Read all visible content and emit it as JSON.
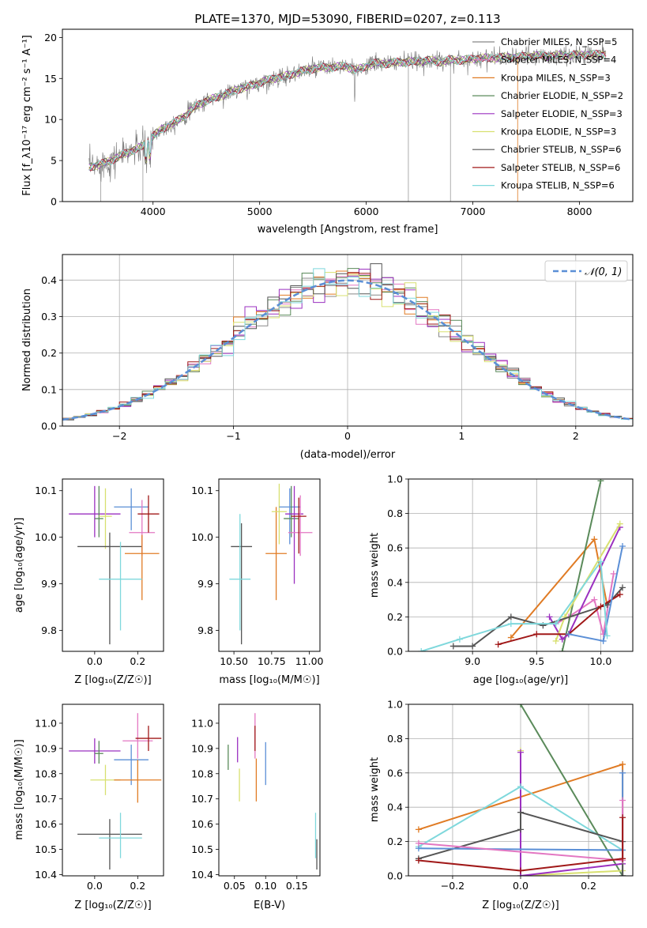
{
  "colors": {
    "chabrier_miles": "#888888",
    "salpeter_miles": "#e377c2",
    "kroupa_miles": "#e07b24",
    "chabrier_elodie": "#5a8a5a",
    "salpeter_elodie": "#9b30c0",
    "kroupa_elodie": "#d8e070",
    "chabrier_stelib": "#555555",
    "salpeter_stelib": "#a01818",
    "kroupa_stelib": "#7fd8dc",
    "normal_curve": "#5b8fd6"
  },
  "chart_data": [
    {
      "id": "spectrum",
      "type": "line",
      "title": "PLATE=1370, MJD=53090, FIBERID=0207, z=0.113",
      "xlabel": "wavelength [Angstrom, rest frame]",
      "ylabel": "Flux [f_λ10⁻¹⁷ erg cm⁻² s⁻¹ A⁻¹]",
      "xlim": [
        3150,
        8500
      ],
      "ylim": [
        0,
        21
      ],
      "xticks": [
        4000,
        5000,
        6000,
        7000,
        8000
      ],
      "yticks": [
        0,
        5,
        10,
        15,
        20
      ],
      "grid": false,
      "legend_position": "right",
      "continuum": {
        "x": [
          3400,
          3500,
          3600,
          3700,
          3800,
          3900,
          4000,
          4100,
          4200,
          4300,
          4400,
          4500,
          4600,
          4700,
          4800,
          4900,
          5000,
          5100,
          5200,
          5300,
          5400,
          5500,
          5600,
          5700,
          5800,
          5900,
          6000,
          6100,
          6200,
          6300,
          6400,
          6500,
          6600,
          6700,
          6800,
          6900,
          7000,
          7100,
          7200,
          7300,
          7400,
          7500,
          7600,
          7700,
          7800,
          7900,
          8000,
          8100,
          8250
        ],
        "y": [
          4.2,
          4.5,
          5.0,
          5.6,
          6.2,
          6.7,
          8.0,
          9.0,
          9.6,
          10.5,
          11.6,
          12.3,
          12.7,
          13.2,
          13.7,
          14.0,
          14.5,
          14.9,
          15.2,
          15.5,
          15.9,
          16.2,
          16.3,
          16.4,
          16.5,
          16.0,
          16.5,
          16.9,
          16.8,
          17.0,
          17.0,
          17.1,
          17.2,
          17.0,
          17.3,
          17.2,
          17.4,
          17.5,
          17.5,
          17.6,
          17.6,
          17.7,
          17.8,
          17.7,
          17.8,
          17.8,
          17.9,
          17.9,
          18.0
        ]
      },
      "series": [
        {
          "name": "Chabrier MILES, N_SSP=5",
          "color": "#888888"
        },
        {
          "name": "Salpeter MILES, N_SSP=4",
          "color": "#e377c2"
        },
        {
          "name": "Kroupa MILES, N_SSP=3",
          "color": "#e07b24"
        },
        {
          "name": "Chabrier ELODIE, N_SSP=2",
          "color": "#5a8a5a"
        },
        {
          "name": "Salpeter ELODIE, N_SSP=3",
          "color": "#9b30c0"
        },
        {
          "name": "Kroupa ELODIE, N_SSP=3",
          "color": "#d8e070"
        },
        {
          "name": "Chabrier STELIB, N_SSP=6",
          "color": "#555555"
        },
        {
          "name": "Salpeter STELIB, N_SSP=6",
          "color": "#a01818"
        },
        {
          "name": "Kroupa STELIB, N_SSP=6",
          "color": "#7fd8dc"
        }
      ]
    },
    {
      "id": "residuals",
      "type": "line",
      "xlabel": "(data-model)/error",
      "ylabel": "Normed distribution",
      "xlim": [
        -2.5,
        2.5
      ],
      "ylim": [
        0,
        0.47
      ],
      "xticks": [
        -2,
        -1,
        0,
        1,
        2
      ],
      "yticks": [
        0.0,
        0.1,
        0.2,
        0.3,
        0.4
      ],
      "grid": true,
      "legend_position": "top-right",
      "legend": "𝒩(0, 1)",
      "bin_width": 0.1,
      "description_of_hist": "9 step histograms of residuals scattering around the standard normal density",
      "normal_mean": 0,
      "normal_sigma": 1
    },
    {
      "id": "age_vs_Z",
      "type": "scatter",
      "xlabel": "Z [log₁₀(Z/Z☉)]",
      "ylabel": "age  [log₁₀(age/yr)]",
      "xlim": [
        -0.15,
        0.32
      ],
      "ylim": [
        9.755,
        10.125
      ],
      "xticks": [
        0.0,
        0.2
      ],
      "yticks": [
        9.8,
        9.9,
        10.0,
        10.1
      ],
      "grid": false,
      "points": [
        {
          "x": 0.0,
          "xerr": 0.12,
          "y": 10.05,
          "yerr": [
            0.05,
            0.06
          ],
          "color": "#9b30c0"
        },
        {
          "x": 0.02,
          "xerr": 0.02,
          "y": 10.04,
          "yerr": [
            0.04,
            0.07
          ],
          "color": "#5a8a5a"
        },
        {
          "x": 0.05,
          "xerr": 0.03,
          "y": 10.045,
          "yerr": [
            0.07,
            0.06
          ],
          "color": "#d8e070"
        },
        {
          "x": 0.07,
          "xerr": 0.15,
          "y": 9.98,
          "yerr": [
            0.21,
            0.03
          ],
          "color": "#555555"
        },
        {
          "x": 0.17,
          "xerr": 0.08,
          "y": 10.065,
          "yerr": [
            0.05,
            0.04
          ],
          "color": "#5b8fd6"
        },
        {
          "x": 0.22,
          "xerr": 0.06,
          "y": 10.01,
          "yerr": [
            0.05,
            0.07
          ],
          "color": "#e377c2"
        },
        {
          "x": 0.25,
          "xerr": 0.05,
          "y": 10.05,
          "yerr": [
            0.04,
            0.04
          ],
          "color": "#a01818"
        },
        {
          "x": 0.22,
          "xerr": 0.08,
          "y": 9.965,
          "yerr": [
            0.1,
            0.04
          ],
          "color": "#e07b24"
        },
        {
          "x": 0.12,
          "xerr": 0.1,
          "y": 9.91,
          "yerr": [
            0.11,
            0.08
          ],
          "color": "#7fd8dc"
        }
      ]
    },
    {
      "id": "age_vs_mass",
      "type": "scatter",
      "xlabel": "mass [log₁₀(M/M☉)]",
      "ylabel": "",
      "xlim": [
        10.4,
        11.07
      ],
      "ylim": [
        9.755,
        10.125
      ],
      "xticks": [
        10.5,
        10.75,
        11.0
      ],
      "yticks": [
        9.8,
        9.9,
        10.0,
        10.1
      ],
      "grid": false,
      "points": [
        {
          "x": 10.55,
          "xerr": 0.07,
          "y": 9.98,
          "yerr": [
            0.21,
            0.05
          ],
          "color": "#555555"
        },
        {
          "x": 10.54,
          "xerr": 0.07,
          "y": 9.91,
          "yerr": [
            0.11,
            0.14
          ],
          "color": "#7fd8dc"
        },
        {
          "x": 10.78,
          "xerr": 0.07,
          "y": 9.965,
          "yerr": [
            0.1,
            0.1
          ],
          "color": "#e07b24"
        },
        {
          "x": 10.8,
          "xerr": 0.05,
          "y": 10.055,
          "yerr": [
            0.07,
            0.06
          ],
          "color": "#d8e070"
        },
        {
          "x": 10.87,
          "xerr": 0.07,
          "y": 10.065,
          "yerr": [
            0.08,
            0.04
          ],
          "color": "#5b8fd6"
        },
        {
          "x": 10.88,
          "xerr": 0.05,
          "y": 10.04,
          "yerr": [
            0.04,
            0.07
          ],
          "color": "#5a8a5a"
        },
        {
          "x": 10.9,
          "xerr": 0.06,
          "y": 10.05,
          "yerr": [
            0.15,
            0.06
          ],
          "color": "#9b30c0"
        },
        {
          "x": 10.94,
          "xerr": 0.08,
          "y": 10.01,
          "yerr": [
            0.05,
            0.08
          ],
          "color": "#e377c2"
        },
        {
          "x": 10.93,
          "xerr": 0.05,
          "y": 10.045,
          "yerr": [
            0.08,
            0.04
          ],
          "color": "#a01818"
        }
      ]
    },
    {
      "id": "weight_vs_age",
      "type": "line",
      "xlabel": "age  [log₁₀(age/yr)]",
      "ylabel": "mass weight",
      "xlim": [
        8.5,
        10.25
      ],
      "ylim": [
        0,
        1.0
      ],
      "xticks": [
        9.0,
        9.5,
        10.0
      ],
      "yticks": [
        0.0,
        0.2,
        0.4,
        0.6,
        0.8,
        1.0
      ],
      "grid": true,
      "series": [
        {
          "color": "#e377c2",
          "x": [
            9.65,
            9.75,
            9.95,
            10.02,
            10.1
          ],
          "y": [
            0.16,
            0.2,
            0.3,
            0.1,
            0.45
          ]
        },
        {
          "color": "#e07b24",
          "x": [
            9.3,
            9.95,
            10.05
          ],
          "y": [
            0.08,
            0.65,
            0.27
          ]
        },
        {
          "color": "#5a8a5a",
          "x": [
            9.7,
            10.0
          ],
          "y": [
            0.0,
            0.99
          ]
        },
        {
          "color": "#9b30c0",
          "x": [
            9.6,
            9.7,
            9.75,
            10.15
          ],
          "y": [
            0.2,
            0.07,
            0.1,
            0.72
          ]
        },
        {
          "color": "#d8e070",
          "x": [
            9.65,
            9.72,
            10.15
          ],
          "y": [
            0.06,
            0.2,
            0.74
          ]
        },
        {
          "color": "#555555",
          "x": [
            8.85,
            9.0,
            9.3,
            9.55,
            10.05,
            10.17
          ],
          "y": [
            0.03,
            0.03,
            0.2,
            0.15,
            0.27,
            0.37
          ]
        },
        {
          "color": "#a01818",
          "x": [
            9.2,
            9.5,
            9.75,
            10.0,
            10.15
          ],
          "y": [
            0.04,
            0.1,
            0.1,
            0.26,
            0.33
          ]
        },
        {
          "color": "#5b8fd6",
          "x": [
            9.75,
            10.02,
            10.17
          ],
          "y": [
            0.1,
            0.06,
            0.61
          ]
        },
        {
          "color": "#7fd8dc",
          "x": [
            8.6,
            8.9,
            9.3,
            9.65,
            10.0,
            10.05
          ],
          "y": [
            0.0,
            0.07,
            0.16,
            0.16,
            0.52,
            0.09
          ]
        }
      ]
    },
    {
      "id": "mass_vs_Z",
      "type": "scatter",
      "xlabel": "Z [log₁₀(Z/Z☉)]",
      "ylabel": "mass [log₁₀(M/M☉)]",
      "xlim": [
        -0.15,
        0.32
      ],
      "ylim": [
        10.395,
        11.075
      ],
      "xticks": [
        0.0,
        0.2
      ],
      "yticks": [
        10.4,
        10.5,
        10.6,
        10.7,
        10.8,
        10.9,
        11.0
      ],
      "grid": false,
      "points": [
        {
          "x": 0.0,
          "xerr": 0.12,
          "y": 10.89,
          "yerr": [
            0.05,
            0.05
          ],
          "color": "#9b30c0"
        },
        {
          "x": 0.02,
          "xerr": 0.02,
          "y": 10.88,
          "yerr": [
            0.04,
            0.05
          ],
          "color": "#5a8a5a"
        },
        {
          "x": 0.05,
          "xerr": 0.07,
          "y": 10.775,
          "yerr": [
            0.06,
            0.06
          ],
          "color": "#d8e070"
        },
        {
          "x": 0.07,
          "xerr": 0.15,
          "y": 10.56,
          "yerr": [
            0.14,
            0.06
          ],
          "color": "#555555"
        },
        {
          "x": 0.17,
          "xerr": 0.08,
          "y": 10.855,
          "yerr": [
            0.1,
            0.06
          ],
          "color": "#5b8fd6"
        },
        {
          "x": 0.2,
          "xerr": 0.07,
          "y": 10.93,
          "yerr": [
            0.07,
            0.11
          ],
          "color": "#e377c2"
        },
        {
          "x": 0.25,
          "xerr": 0.06,
          "y": 10.94,
          "yerr": [
            0.05,
            0.05
          ],
          "color": "#a01818"
        },
        {
          "x": 0.2,
          "xerr": 0.11,
          "y": 10.775,
          "yerr": [
            0.09,
            0.08
          ],
          "color": "#e07b24"
        },
        {
          "x": 0.12,
          "xerr": 0.1,
          "y": 10.545,
          "yerr": [
            0.08,
            0.1
          ],
          "color": "#7fd8dc"
        }
      ]
    },
    {
      "id": "mass_vs_ebv",
      "type": "scatter",
      "xlabel": "E(B-V)",
      "ylabel": "",
      "xlim": [
        0.025,
        0.187
      ],
      "ylim": [
        10.395,
        11.075
      ],
      "xticks": [
        0.05,
        0.1,
        0.15
      ],
      "yticks": [
        10.4,
        10.5,
        10.6,
        10.7,
        10.8,
        10.9,
        11.0
      ],
      "grid": false,
      "points": [
        {
          "x": 0.04,
          "y": 10.865,
          "yerr": [
            0.05,
            0.05
          ],
          "color": "#5a8a5a"
        },
        {
          "x": 0.055,
          "y": 10.895,
          "yerr": [
            0.05,
            0.05
          ],
          "color": "#9b30c0"
        },
        {
          "x": 0.058,
          "y": 10.76,
          "yerr": [
            0.07,
            0.06
          ],
          "color": "#d8e070"
        },
        {
          "x": 0.083,
          "y": 10.93,
          "yerr": [
            0.07,
            0.11
          ],
          "color": "#e377c2"
        },
        {
          "x": 0.083,
          "y": 10.94,
          "yerr": [
            0.05,
            0.05
          ],
          "color": "#a01818"
        },
        {
          "x": 0.085,
          "y": 10.78,
          "yerr": [
            0.09,
            0.08
          ],
          "color": "#e07b24"
        },
        {
          "x": 0.1,
          "y": 10.855,
          "yerr": [
            0.1,
            0.07
          ],
          "color": "#5b8fd6"
        },
        {
          "x": 0.18,
          "y": 10.545,
          "yerr": [
            0.08,
            0.1
          ],
          "color": "#7fd8dc"
        },
        {
          "x": 0.182,
          "y": 10.48,
          "yerr": [
            0.06,
            0.06
          ],
          "color": "#555555"
        }
      ]
    },
    {
      "id": "weight_vs_Z",
      "type": "line",
      "xlabel": "Z [log₁₀(Z/Z☉)]",
      "ylabel": "mass weight",
      "xlim": [
        -0.33,
        0.33
      ],
      "ylim": [
        0,
        1.0
      ],
      "xticks": [
        -0.2,
        0.0,
        0.2
      ],
      "yticks": [
        0.0,
        0.2,
        0.4,
        0.6,
        0.8,
        1.0
      ],
      "grid": true,
      "series": [
        {
          "color": "#e07b24",
          "x": [
            -0.3,
            0.3,
            0.3
          ],
          "y": [
            0.27,
            0.65,
            0.0
          ]
        },
        {
          "color": "#5a8a5a",
          "x": [
            0.0,
            0.3
          ],
          "y": [
            1.0,
            0.0
          ]
        },
        {
          "color": "#d8e070",
          "x": [
            0.0,
            0.0,
            0.3
          ],
          "y": [
            0.73,
            0.0,
            0.03
          ]
        },
        {
          "color": "#9b30c0",
          "x": [
            0.0,
            0.0,
            0.3
          ],
          "y": [
            0.72,
            0.0,
            0.07
          ]
        },
        {
          "color": "#7fd8dc",
          "x": [
            -0.3,
            0.0,
            0.3,
            0.3
          ],
          "y": [
            0.17,
            0.52,
            0.15,
            0.0
          ]
        },
        {
          "color": "#555555",
          "x": [
            -0.3,
            0.0,
            0.0,
            0.3,
            0.3
          ],
          "y": [
            0.1,
            0.27,
            0.37,
            0.2,
            0.0
          ]
        },
        {
          "color": "#5b8fd6",
          "x": [
            -0.3,
            0.3,
            0.3
          ],
          "y": [
            0.16,
            0.15,
            0.6
          ]
        },
        {
          "color": "#e377c2",
          "x": [
            -0.3,
            0.3,
            0.3
          ],
          "y": [
            0.19,
            0.09,
            0.44
          ]
        },
        {
          "color": "#a01818",
          "x": [
            -0.3,
            0.0,
            0.3,
            0.3
          ],
          "y": [
            0.09,
            0.03,
            0.1,
            0.34
          ]
        }
      ]
    }
  ]
}
